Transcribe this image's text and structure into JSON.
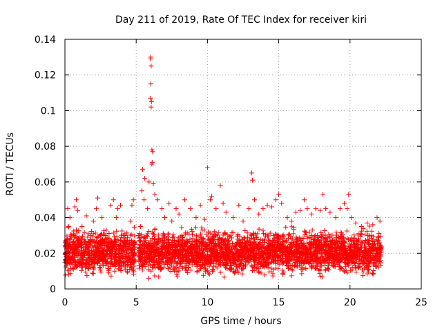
{
  "chart_data": {
    "type": "scatter",
    "title": "Day 211 of 2019, Rate Of TEC Index for receiver kiri",
    "xlabel": "GPS time / hours",
    "ylabel": "ROTI / TECUs",
    "xlim": [
      0,
      25
    ],
    "ylim": [
      0,
      0.14
    ],
    "xticks": [
      0,
      5,
      10,
      15,
      20,
      25
    ],
    "yticks": [
      0,
      0.02,
      0.04,
      0.06,
      0.08,
      0.1,
      0.12,
      0.14
    ],
    "xtick_labels": [
      "0",
      "5",
      "10",
      "15",
      "20",
      "25"
    ],
    "ytick_labels": [
      "0",
      "0.02",
      "0.04",
      "0.06",
      "0.08",
      "0.1",
      "0.12",
      "0.14"
    ],
    "grid": true,
    "marker": "plus",
    "color": "#ff0000",
    "series": [
      {
        "name": "ROTI",
        "points": [
          [
            0.1,
            0.015
          ],
          [
            0.15,
            0.025
          ],
          [
            0.2,
            0.045
          ],
          [
            0.25,
            0.035
          ],
          [
            0.35,
            0.04
          ],
          [
            0.5,
            0.022
          ],
          [
            0.65,
            0.03
          ],
          [
            0.7,
            0.046
          ],
          [
            0.8,
            0.05
          ],
          [
            0.9,
            0.044
          ],
          [
            1.0,
            0.02
          ],
          [
            1.2,
            0.035
          ],
          [
            1.5,
            0.041
          ],
          [
            1.8,
            0.03
          ],
          [
            2.0,
            0.038
          ],
          [
            2.2,
            0.045
          ],
          [
            2.3,
            0.051
          ],
          [
            2.6,
            0.04
          ],
          [
            2.9,
            0.033
          ],
          [
            3.2,
            0.047
          ],
          [
            3.4,
            0.05
          ],
          [
            3.6,
            0.04
          ],
          [
            3.7,
            0.045
          ],
          [
            3.9,
            0.047
          ],
          [
            4.1,
            0.03
          ],
          [
            4.3,
            0.022
          ],
          [
            4.6,
            0.038
          ],
          [
            4.7,
            0.047
          ],
          [
            4.8,
            0.05
          ],
          [
            4.85,
            0.025
          ],
          [
            5.3,
            0.035
          ],
          [
            5.4,
            0.055
          ],
          [
            5.45,
            0.067
          ],
          [
            5.55,
            0.05
          ],
          [
            5.6,
            0.062
          ],
          [
            5.8,
            0.045
          ],
          [
            5.9,
            0.06
          ],
          [
            6.0,
            0.129
          ],
          [
            6.02,
            0.13
          ],
          [
            6.05,
            0.125
          ],
          [
            6.03,
            0.115
          ],
          [
            6.0,
            0.107
          ],
          [
            6.05,
            0.102
          ],
          [
            6.07,
            0.105
          ],
          [
            6.1,
            0.078
          ],
          [
            6.15,
            0.077
          ],
          [
            6.1,
            0.07
          ],
          [
            6.12,
            0.071
          ],
          [
            6.2,
            0.059
          ],
          [
            6.3,
            0.053
          ],
          [
            6.5,
            0.05
          ],
          [
            6.8,
            0.045
          ],
          [
            7.0,
            0.04
          ],
          [
            7.3,
            0.048
          ],
          [
            7.5,
            0.038
          ],
          [
            7.8,
            0.045
          ],
          [
            8.0,
            0.042
          ],
          [
            8.4,
            0.05
          ],
          [
            8.8,
            0.045
          ],
          [
            9.2,
            0.04
          ],
          [
            9.5,
            0.047
          ],
          [
            9.8,
            0.039
          ],
          [
            10.0,
            0.068
          ],
          [
            10.2,
            0.05
          ],
          [
            10.3,
            0.052
          ],
          [
            10.6,
            0.045
          ],
          [
            10.9,
            0.058
          ],
          [
            11.1,
            0.048
          ],
          [
            11.3,
            0.043
          ],
          [
            11.8,
            0.04
          ],
          [
            12.2,
            0.047
          ],
          [
            12.5,
            0.038
          ],
          [
            12.9,
            0.045
          ],
          [
            13.1,
            0.065
          ],
          [
            13.15,
            0.061
          ],
          [
            13.3,
            0.05
          ],
          [
            13.6,
            0.042
          ],
          [
            13.9,
            0.045
          ],
          [
            14.2,
            0.047
          ],
          [
            14.5,
            0.046
          ],
          [
            14.8,
            0.05
          ],
          [
            15.0,
            0.053
          ],
          [
            15.2,
            0.048
          ],
          [
            15.6,
            0.04
          ],
          [
            15.9,
            0.038
          ],
          [
            16.2,
            0.043
          ],
          [
            16.5,
            0.044
          ],
          [
            16.8,
            0.05
          ],
          [
            17.0,
            0.045
          ],
          [
            17.3,
            0.042
          ],
          [
            17.6,
            0.045
          ],
          [
            17.9,
            0.044
          ],
          [
            18.1,
            0.053
          ],
          [
            18.3,
            0.045
          ],
          [
            18.6,
            0.043
          ],
          [
            19.0,
            0.04
          ],
          [
            19.3,
            0.045
          ],
          [
            19.6,
            0.048
          ],
          [
            19.8,
            0.045
          ],
          [
            19.9,
            0.053
          ],
          [
            20.1,
            0.04
          ],
          [
            20.4,
            0.037
          ],
          [
            20.8,
            0.035
          ],
          [
            21.2,
            0.037
          ],
          [
            21.6,
            0.036
          ],
          [
            21.9,
            0.04
          ],
          [
            22.1,
            0.038
          ]
        ]
      }
    ],
    "dense_band": {
      "description_segments": [
        [
          0.0,
          4.95
        ],
        [
          5.15,
          22.2
        ]
      ],
      "y_range": [
        0.005,
        0.035
      ]
    }
  }
}
